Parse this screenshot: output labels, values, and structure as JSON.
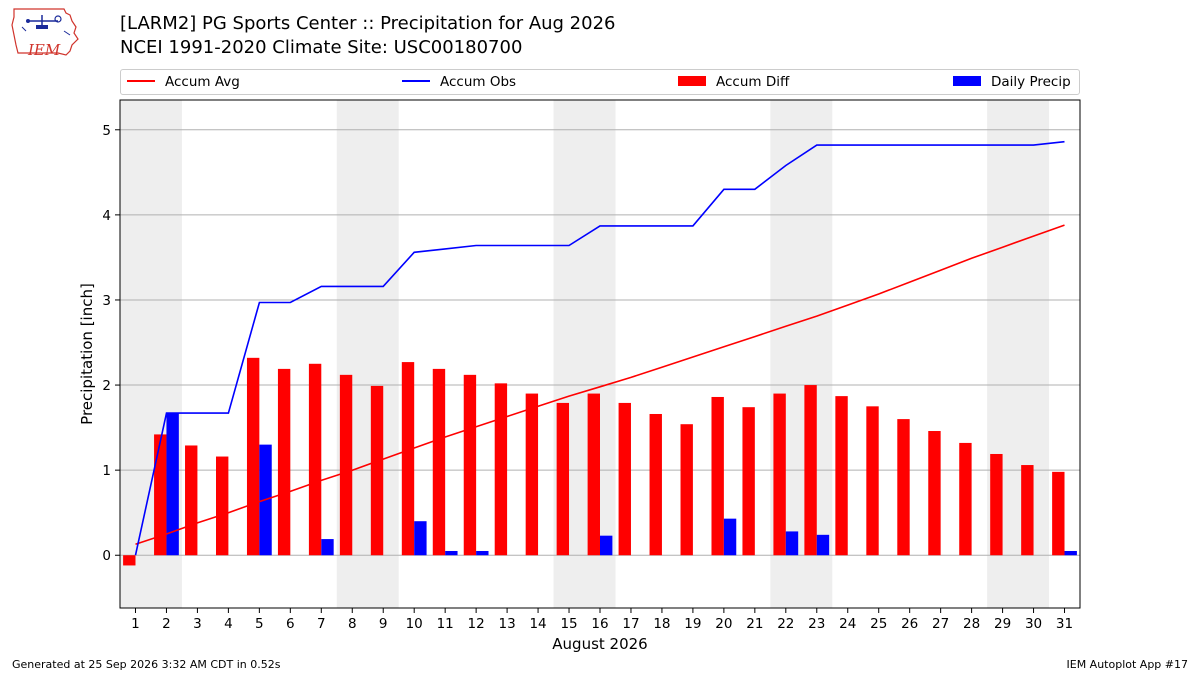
{
  "header": {
    "title_line1": "[LARM2] PG Sports Center :: Precipitation for Aug 2026",
    "title_line2": "NCEI 1991-2020 Climate Site: USC00180700",
    "logo_text": "IEM"
  },
  "footer": {
    "generated": "Generated at 25 Sep 2026 3:32 AM CDT in 0.52s",
    "app": "IEM Autoplot App #17"
  },
  "colors": {
    "avg": "#ff0000",
    "obs": "#0000ff",
    "diff": "#ff0000",
    "daily": "#0000ff",
    "weekend_band": "#eeeeee",
    "grid": "#b0b0b0"
  },
  "chart_data": {
    "type": "bar",
    "xlabel": "August 2026",
    "ylabel": "Precipitation [inch]",
    "xlim": [
      0.5,
      31.5
    ],
    "ylim": [
      -0.62,
      5.35
    ],
    "yticks": [
      0,
      1,
      2,
      3,
      4,
      5
    ],
    "grid": true,
    "legend_position": "top",
    "x": [
      1,
      2,
      3,
      4,
      5,
      6,
      7,
      8,
      9,
      10,
      11,
      12,
      13,
      14,
      15,
      16,
      17,
      18,
      19,
      20,
      21,
      22,
      23,
      24,
      25,
      26,
      27,
      28,
      29,
      30,
      31
    ],
    "shaded_days": [
      [
        0.5,
        2.5
      ],
      [
        7.5,
        9.5
      ],
      [
        14.5,
        16.5
      ],
      [
        21.5,
        23.5
      ],
      [
        28.5,
        30.5
      ]
    ],
    "series": [
      {
        "name": "Accum Avg",
        "kind": "line",
        "values": [
          0.13,
          0.25,
          0.38,
          0.5,
          0.63,
          0.75,
          0.88,
          1.0,
          1.13,
          1.26,
          1.39,
          1.51,
          1.63,
          1.75,
          1.87,
          1.98,
          2.09,
          2.21,
          2.33,
          2.45,
          2.57,
          2.69,
          2.81,
          2.94,
          3.07,
          3.21,
          3.35,
          3.49,
          3.62,
          3.75,
          3.88
        ]
      },
      {
        "name": "Accum Obs",
        "kind": "line",
        "values": [
          0.0,
          1.67,
          1.67,
          1.67,
          2.97,
          2.97,
          3.16,
          3.16,
          3.16,
          3.56,
          3.6,
          3.64,
          3.64,
          3.64,
          3.64,
          3.87,
          3.87,
          3.87,
          3.87,
          4.3,
          4.3,
          4.58,
          4.82,
          4.82,
          4.82,
          4.82,
          4.82,
          4.82,
          4.82,
          4.82,
          4.86
        ]
      },
      {
        "name": "Accum Diff",
        "kind": "bar",
        "values": [
          -0.12,
          1.42,
          1.29,
          1.16,
          2.32,
          2.19,
          2.25,
          2.12,
          1.99,
          2.27,
          2.19,
          2.12,
          2.02,
          1.9,
          1.79,
          1.9,
          1.79,
          1.66,
          1.54,
          1.86,
          1.74,
          1.9,
          2.0,
          1.87,
          1.75,
          1.6,
          1.46,
          1.32,
          1.19,
          1.06,
          0.98
        ]
      },
      {
        "name": "Daily Precip",
        "kind": "bar",
        "values": [
          0.0,
          1.67,
          0.0,
          0.0,
          1.3,
          0.0,
          0.19,
          0.0,
          0.0,
          0.4,
          0.05,
          0.05,
          0.0,
          0.0,
          0.0,
          0.23,
          0.0,
          0.0,
          0.0,
          0.43,
          0.0,
          0.28,
          0.24,
          0.0,
          0.0,
          0.0,
          0.0,
          0.0,
          0.0,
          0.0,
          0.05
        ]
      }
    ]
  }
}
